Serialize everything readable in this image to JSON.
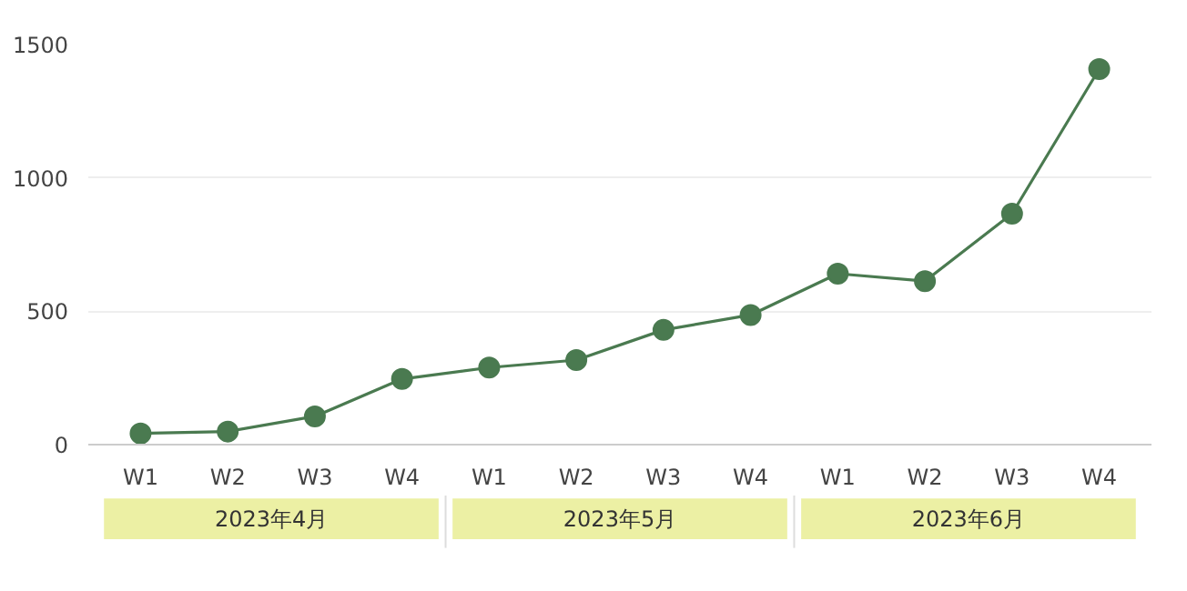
{
  "chart_data": {
    "type": "line",
    "categories": [
      "W1",
      "W2",
      "W3",
      "W4",
      "W1",
      "W2",
      "W3",
      "W4",
      "W1",
      "W2",
      "W3",
      "W4"
    ],
    "series": [
      {
        "color": "#4a7a50",
        "values": [
          42,
          49,
          106,
          246,
          289,
          317,
          430,
          486,
          641,
          613,
          866,
          1408
        ]
      }
    ],
    "annotations": [
      "2023年4月",
      "2023年5月",
      "2023年6月"
    ],
    "ylim": [
      0,
      1500
    ],
    "yticks": [
      0,
      500,
      1000,
      1500
    ],
    "grid": "y",
    "marker": "circle",
    "line_style": "solid"
  }
}
